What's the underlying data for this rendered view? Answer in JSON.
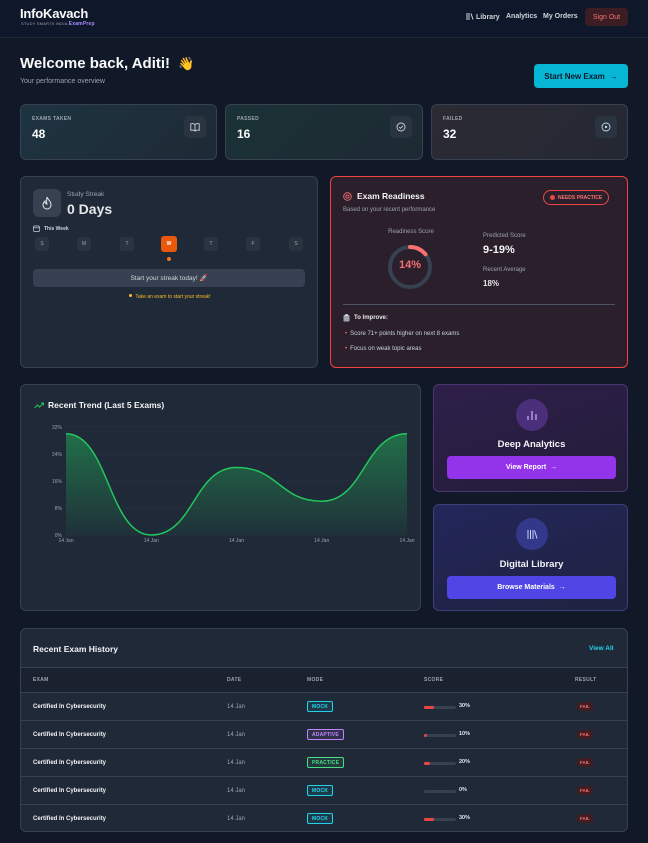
{
  "header": {
    "logo_title": "InfoKavach",
    "logo_subtitle": "STUDY SMARTS INDIA",
    "logo_brand": "ExamPrep",
    "nav": [
      {
        "label": "Library",
        "icon": "library-icon"
      },
      {
        "label": "Analytics"
      },
      {
        "label": "My Orders"
      }
    ],
    "sign_out": "Sign Out"
  },
  "welcome": {
    "title": "Welcome back, Aditi!",
    "emoji": "👋",
    "subtitle": "Your performance overview",
    "start_button": "Start New Exam"
  },
  "stats": [
    {
      "label": "EXAMS TAKEN",
      "value": "48",
      "icon": "book-icon"
    },
    {
      "label": "PASSED",
      "value": "16",
      "icon": "check-circle-icon"
    },
    {
      "label": "FAILED",
      "value": "32",
      "icon": "x-circle-icon"
    }
  ],
  "streak": {
    "label": "Study Streak",
    "value": "0 Days",
    "week_label": "This Week",
    "days": [
      "S",
      "M",
      "T",
      "W",
      "T",
      "F",
      "S"
    ],
    "today_index": 3,
    "cta": "Start your streak today! 🚀",
    "hint": "Take an exam to start your streak!"
  },
  "readiness": {
    "title": "Exam Readiness",
    "subtitle": "Based on your recent performance",
    "badge": "NEEDS PRACTICE",
    "score_label": "Readiness Score",
    "score": "14%",
    "score_fraction": 0.14,
    "predicted_label": "Predicted Score",
    "predicted": "9-19%",
    "recent_label": "Recent Average",
    "recent": "18%",
    "improve_title": "To Improve:",
    "improve_items": [
      "Score 71+ points higher on next 8 exams",
      "Focus on weak topic areas"
    ],
    "colors": {
      "accent": "#f87171",
      "border": "#ef4444"
    }
  },
  "trend": {
    "title": "Recent Trend (Last 5 Exams)"
  },
  "chart_data": {
    "type": "line",
    "x": [
      "14 Jan",
      "14 Jan",
      "14 Jan",
      "14 Jan",
      "14 Jan"
    ],
    "values": [
      30,
      0,
      20,
      10,
      30
    ],
    "y_ticks": [
      "0%",
      "8%",
      "16%",
      "24%",
      "32%"
    ],
    "ylim": [
      0,
      32
    ],
    "grid": true,
    "color": "#22c55e"
  },
  "analytics_card": {
    "title": "Deep Analytics",
    "button": "View Report",
    "icon": "bar-chart-icon"
  },
  "library_card": {
    "title": "Digital Library",
    "button": "Browse Materials",
    "icon": "library-icon"
  },
  "history": {
    "title": "Recent Exam History",
    "view_all": "View All",
    "columns": [
      "EXAM",
      "DATE",
      "MODE",
      "SCORE",
      "RESULT"
    ],
    "rows": [
      {
        "exam": "Certified In Cybersecurity",
        "date": "14 Jan",
        "mode": "MOCK",
        "score": "30%",
        "score_fraction": 0.3,
        "result": "FAIL"
      },
      {
        "exam": "Certified In Cybersecurity",
        "date": "14 Jan",
        "mode": "ADAPTIVE",
        "score": "10%",
        "score_fraction": 0.1,
        "result": "FAIL"
      },
      {
        "exam": "Certified In Cybersecurity",
        "date": "14 Jan",
        "mode": "PRACTICE",
        "score": "20%",
        "score_fraction": 0.2,
        "result": "FAIL"
      },
      {
        "exam": "Certified In Cybersecurity",
        "date": "14 Jan",
        "mode": "MOCK",
        "score": "0%",
        "score_fraction": 0.0,
        "result": "FAIL"
      },
      {
        "exam": "Certified In Cybersecurity",
        "date": "14 Jan",
        "mode": "MOCK",
        "score": "30%",
        "score_fraction": 0.3,
        "result": "FAIL"
      }
    ],
    "mode_colors": {
      "MOCK": "#22d3ee",
      "ADAPTIVE": "#c084fc",
      "PRACTICE": "#4ade80"
    }
  }
}
